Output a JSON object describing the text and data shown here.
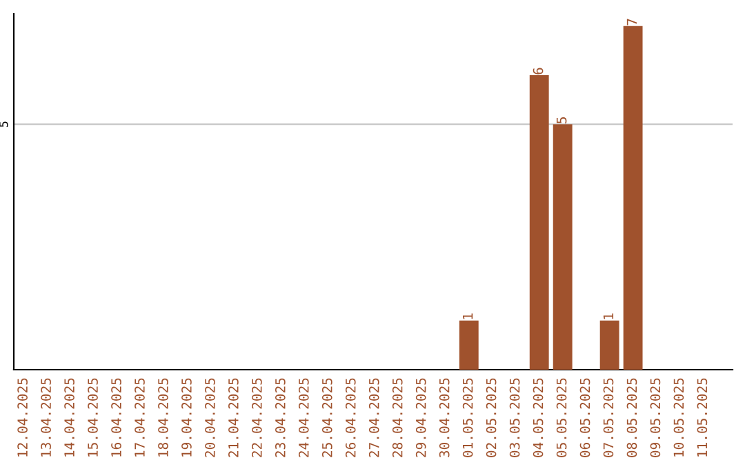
{
  "chart_data": {
    "type": "bar",
    "categories": [
      "12.04.2025",
      "13.04.2025",
      "14.04.2025",
      "15.04.2025",
      "16.04.2025",
      "17.04.2025",
      "18.04.2025",
      "19.04.2025",
      "20.04.2025",
      "21.04.2025",
      "22.04.2025",
      "23.04.2025",
      "24.04.2025",
      "25.04.2025",
      "26.04.2025",
      "27.04.2025",
      "28.04.2025",
      "29.04.2025",
      "30.04.2025",
      "01.05.2025",
      "02.05.2025",
      "03.05.2025",
      "04.05.2025",
      "05.05.2025",
      "06.05.2025",
      "07.05.2025",
      "08.05.2025",
      "09.05.2025",
      "10.05.2025",
      "11.05.2025"
    ],
    "values": [
      null,
      null,
      null,
      null,
      null,
      null,
      null,
      null,
      null,
      null,
      null,
      null,
      null,
      null,
      null,
      null,
      null,
      null,
      null,
      1,
      null,
      null,
      6,
      5,
      null,
      1,
      7,
      null,
      null,
      null
    ],
    "data_labels": true,
    "color": "#a0522d",
    "ylim": [
      0,
      7.25
    ],
    "ref_lines": [
      {
        "axis": "y",
        "value": 5,
        "label": "5",
        "color": "#c8c8c8"
      }
    ]
  }
}
